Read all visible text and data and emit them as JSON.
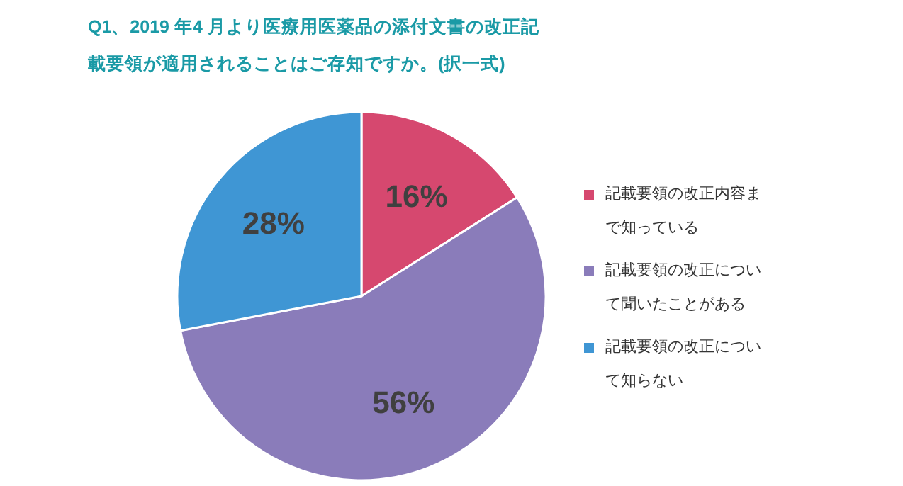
{
  "chart_data": {
    "type": "pie",
    "title": "Q1、2019 年4 月より医療用医薬品の添付文書の改正記載要領が適用されることはご存知ですか。(択一式)",
    "categories": [
      "記載要領の改正内容まで知っている",
      "記載要領の改正について聞いたことがある",
      "記載要領の改正について知らない"
    ],
    "values": [
      16,
      56,
      28
    ],
    "colors": [
      "#d6486f",
      "#8a7cba",
      "#3f96d4"
    ],
    "value_labels": [
      "16%",
      "56%",
      "28%"
    ],
    "legend": "right"
  }
}
